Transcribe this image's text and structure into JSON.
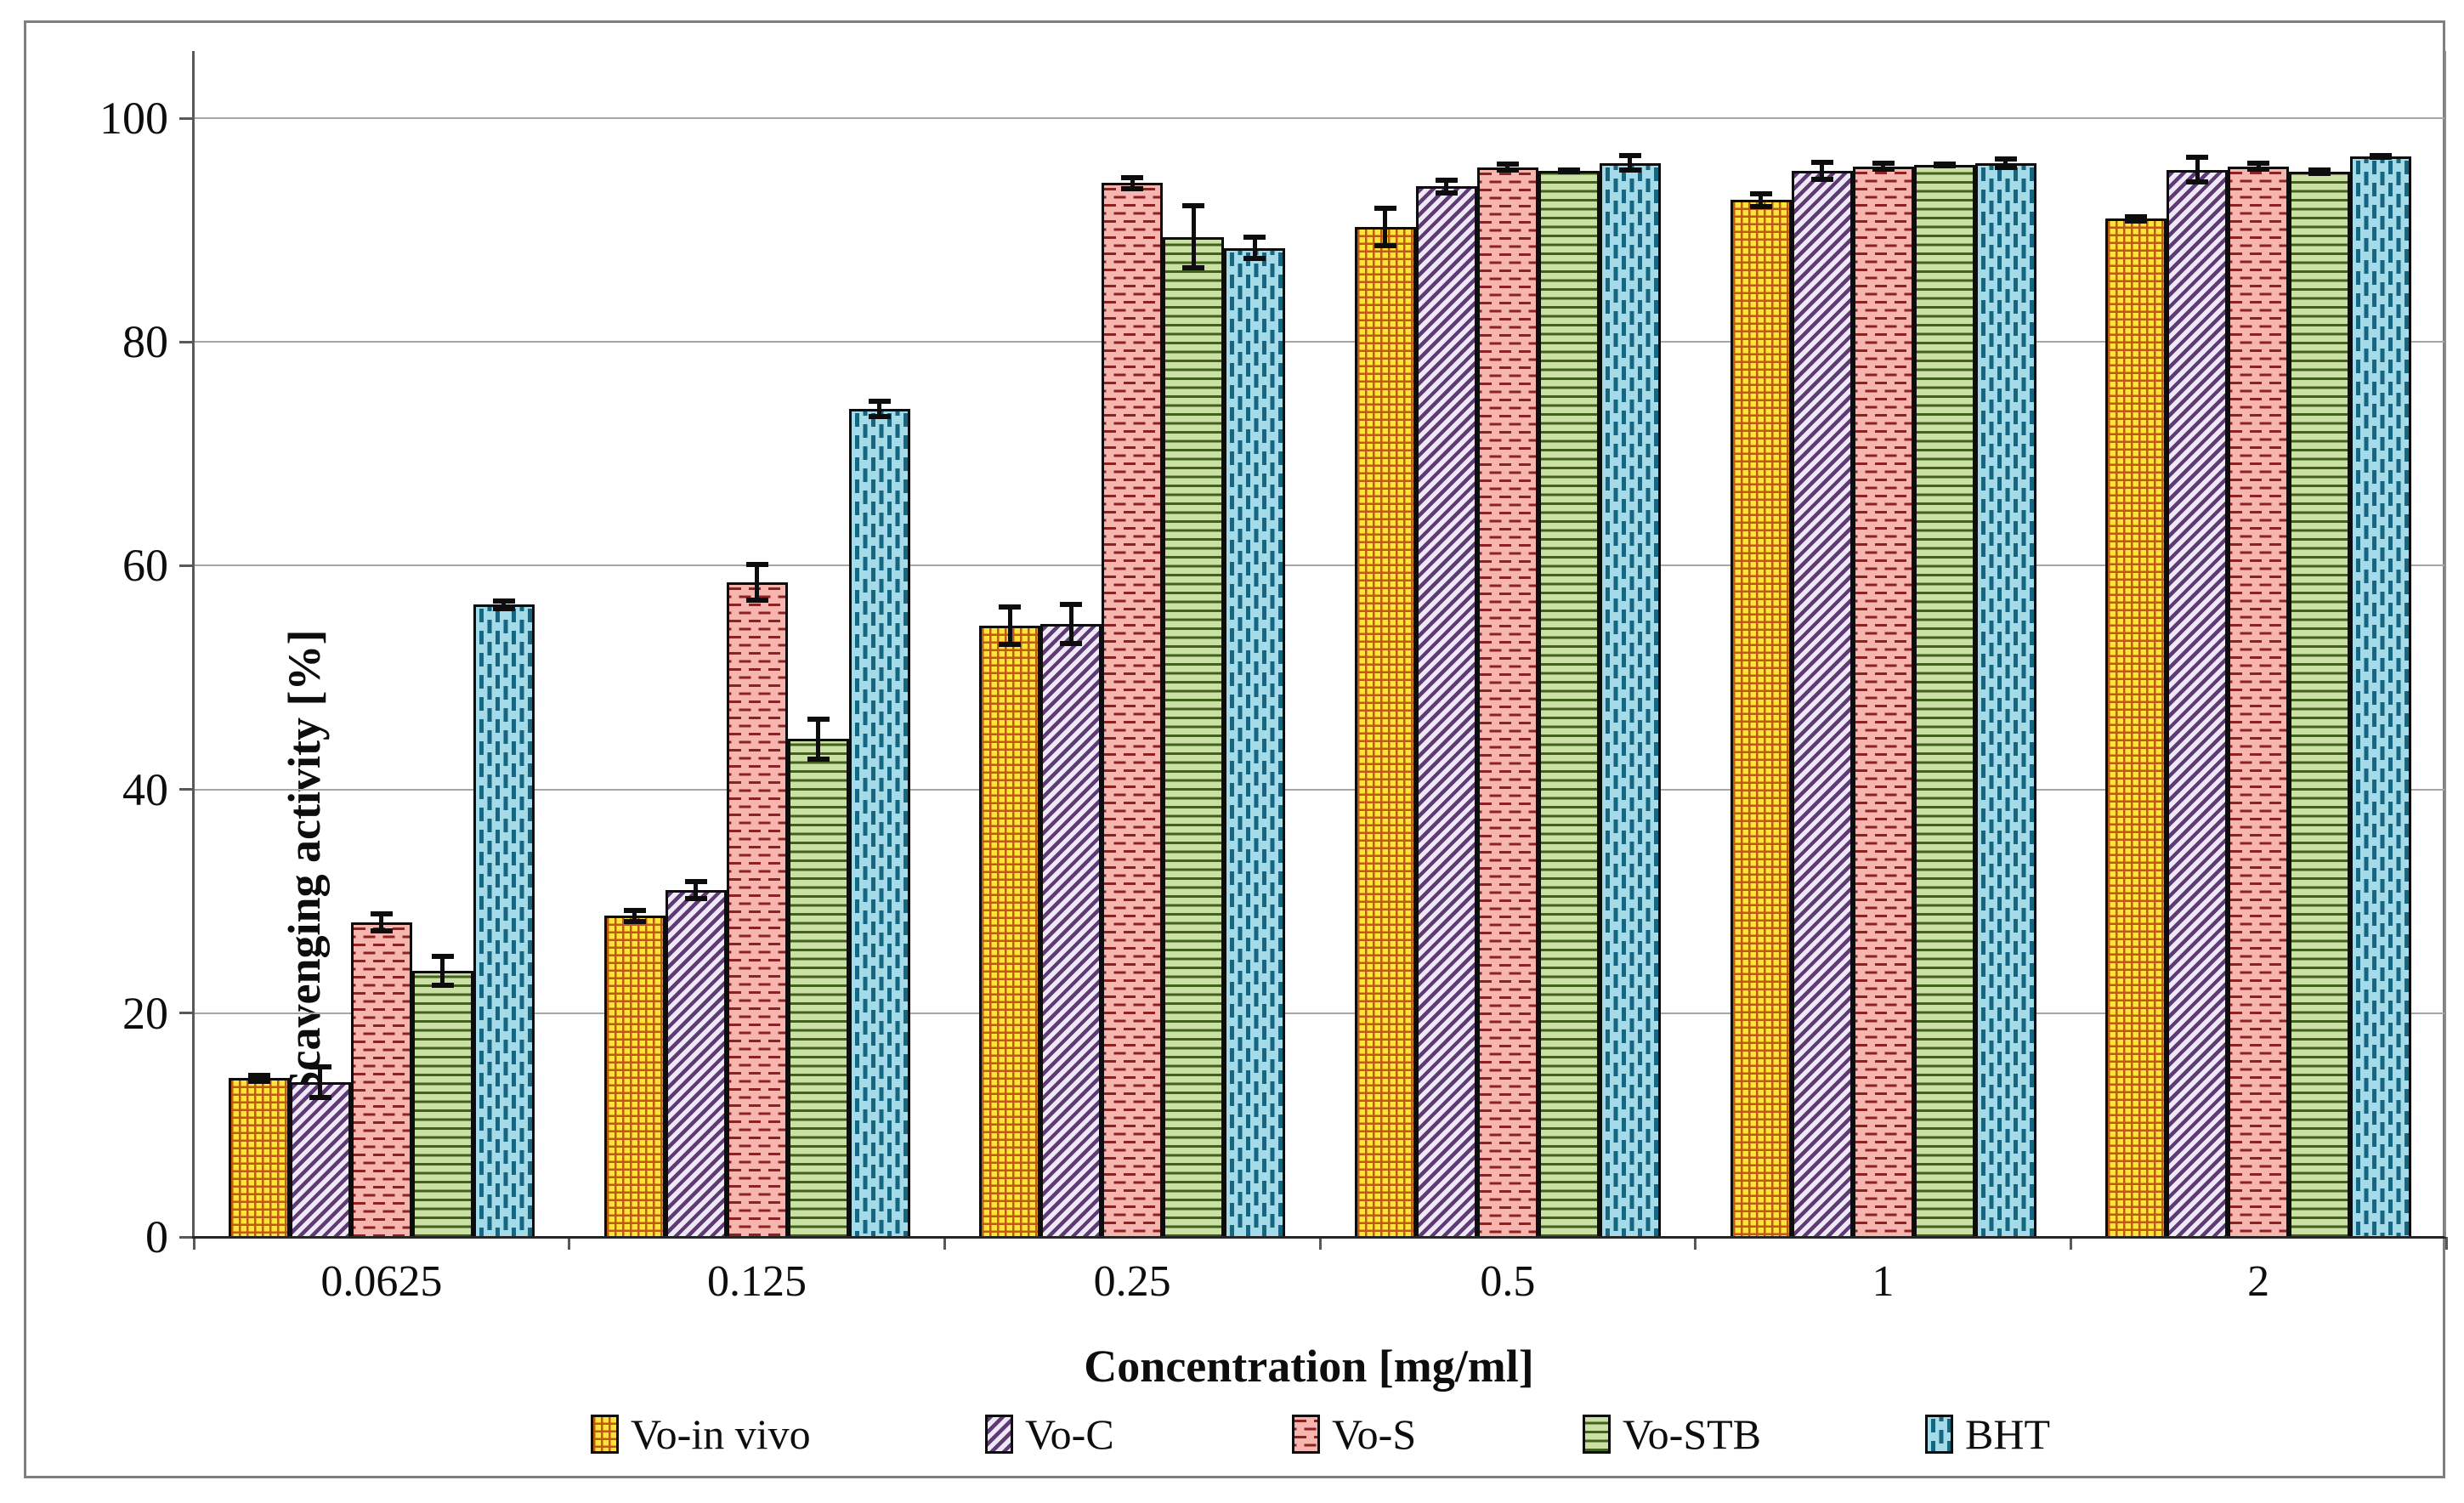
{
  "figure": {
    "x_axis_title": "Concentration [mg/ml]",
    "y_axis_title": "Scavenging activity [%]"
  },
  "chart_data": {
    "type": "bar",
    "title": "",
    "xlabel": "Concentration [mg/ml]",
    "ylabel": "Scavenging activity [%]",
    "ylim": [
      0,
      100
    ],
    "y_ticks": [
      0,
      20,
      40,
      60,
      80,
      100
    ],
    "grid": true,
    "legend_position": "bottom",
    "categories": [
      "0.0625",
      "0.125",
      "0.25",
      "0.5",
      "1",
      "2"
    ],
    "series": [
      {
        "name": "Vo-in vivo",
        "fill": "#ffe43a",
        "pattern": "grid",
        "pattern_color": "#be5b10",
        "values": [
          14.2,
          28.7,
          54.6,
          90.3,
          92.7,
          91.0
        ],
        "errors": [
          0.5,
          0.7,
          1.9,
          1.9,
          0.8,
          0.4
        ]
      },
      {
        "name": "Vo-C",
        "fill": "#efe9f5",
        "pattern": "diagonal-stripes",
        "pattern_color": "#5e3a76",
        "values": [
          13.8,
          31.0,
          54.8,
          93.9,
          95.3,
          95.4
        ],
        "errors": [
          1.6,
          1.0,
          2.0,
          0.8,
          1.0,
          1.3
        ]
      },
      {
        "name": "Vo-S",
        "fill": "#f7b5b0",
        "pattern": "horizontal-dashes",
        "pattern_color": "#8c2121",
        "values": [
          28.1,
          58.5,
          94.2,
          95.6,
          95.7,
          95.7
        ],
        "errors": [
          1.0,
          1.8,
          0.7,
          0.5,
          0.5,
          0.5
        ]
      },
      {
        "name": "Vo-STB",
        "fill": "#cbe0a5",
        "pattern": "horizontal-lines",
        "pattern_color": "#42621c",
        "values": [
          23.8,
          44.5,
          89.4,
          95.3,
          95.8,
          95.2
        ],
        "errors": [
          1.5,
          2.0,
          3.0,
          0.3,
          0.3,
          0.4
        ]
      },
      {
        "name": "BHT",
        "fill": "#a5dbe8",
        "pattern": "vertical-dashes",
        "pattern_color": "#156680",
        "values": [
          56.5,
          74.0,
          88.4,
          96.0,
          96.0,
          96.6
        ],
        "errors": [
          0.6,
          0.9,
          1.2,
          0.9,
          0.6,
          0.3
        ]
      }
    ],
    "axis_color": "#595959",
    "gridline_color": "#a6a6a6",
    "error_bar_color": "#0d0d0d"
  },
  "legend_x_positions": [
    695,
    1159,
    1520,
    1862,
    2265
  ]
}
